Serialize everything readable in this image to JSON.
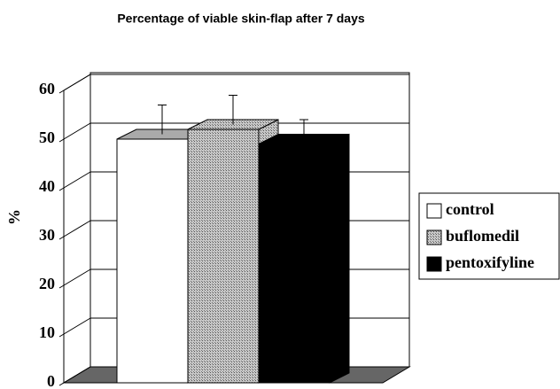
{
  "chart_data": {
    "type": "bar3d",
    "title": "Percentage of viable skin-flap after 7 days",
    "y_label": "%",
    "categories": [
      "control",
      "buflomedil",
      "pentoxifyline"
    ],
    "values": [
      50,
      52,
      49
    ],
    "errors": [
      6,
      6,
      4
    ],
    "colors": [
      "#ffffff",
      "#a8a8a8",
      "#000000"
    ],
    "ylim": [
      0,
      60
    ],
    "yticks": [
      0,
      10,
      20,
      30,
      40,
      50,
      60
    ],
    "grid": true,
    "legend": "right"
  }
}
